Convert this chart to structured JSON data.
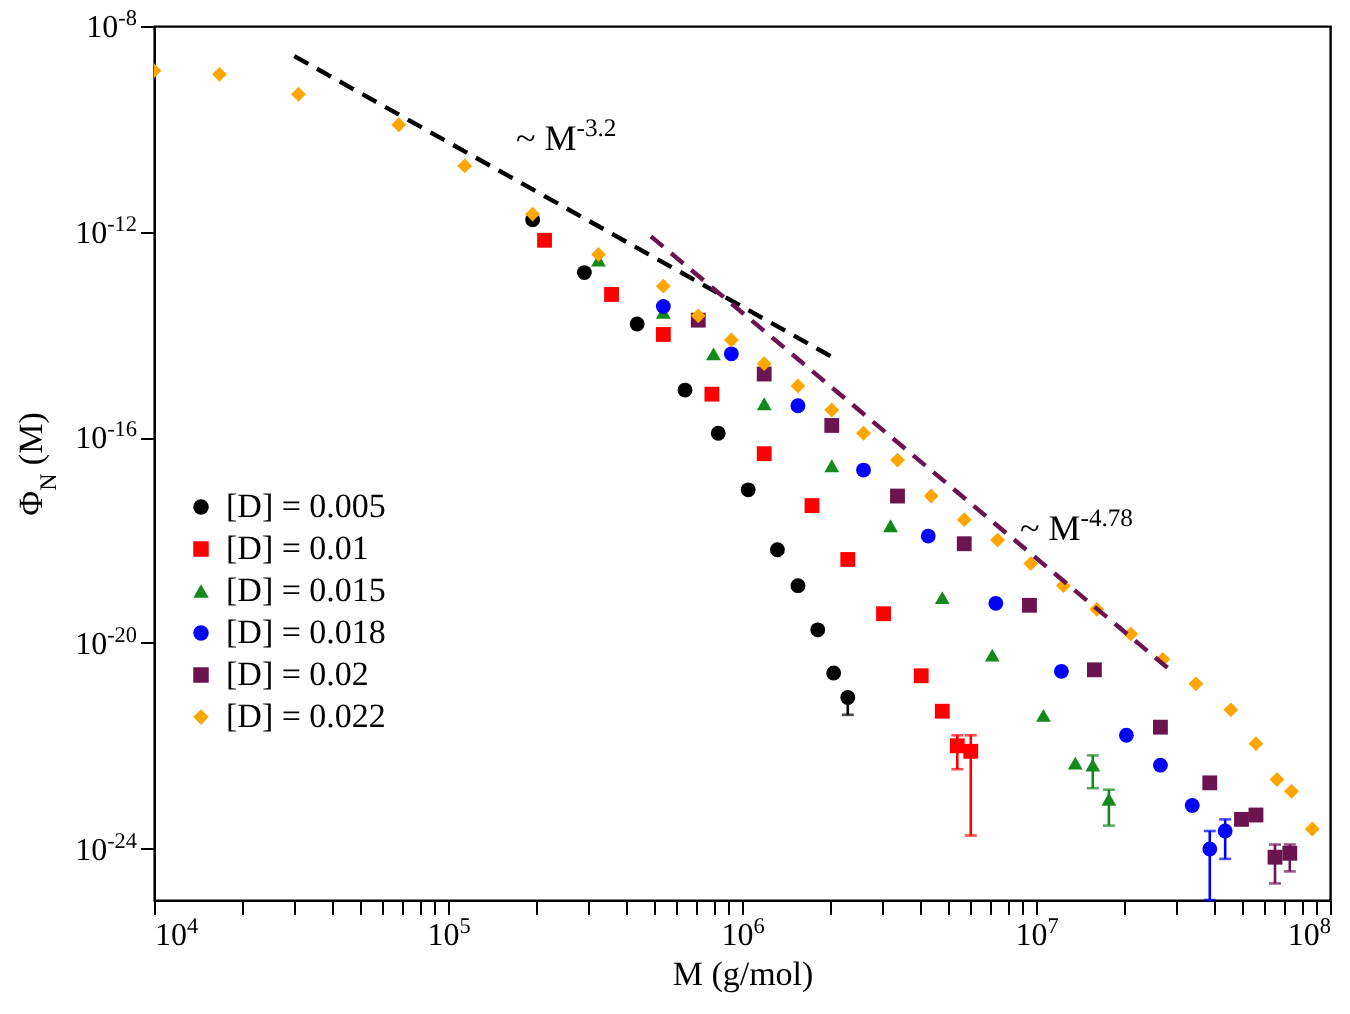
{
  "chart_data": {
    "type": "scatter",
    "xlabel": "M (g/mol)",
    "ylabel": "Φ$_{N}$ (M)",
    "log": "xy",
    "grid": false,
    "legend": "left",
    "xlim": [
      10000,
      100000000
    ],
    "ylim": [
      1e-25,
      1e-08
    ],
    "xticks": [
      {
        "value": 10000,
        "label": "10$^{4}$"
      },
      {
        "value": 20000,
        "label": null
      },
      {
        "value": 30000,
        "label": null
      },
      {
        "value": 40000,
        "label": null
      },
      {
        "value": 50000,
        "label": null
      },
      {
        "value": 60000,
        "label": null
      },
      {
        "value": 70000,
        "label": null
      },
      {
        "value": 80000,
        "label": null
      },
      {
        "value": 90000,
        "label": null
      },
      {
        "value": 100000,
        "label": "10$^{5}$"
      },
      {
        "value": 200000,
        "label": null
      },
      {
        "value": 300000,
        "label": null
      },
      {
        "value": 400000,
        "label": null
      },
      {
        "value": 500000,
        "label": null
      },
      {
        "value": 600000,
        "label": null
      },
      {
        "value": 700000,
        "label": null
      },
      {
        "value": 800000,
        "label": null
      },
      {
        "value": 900000,
        "label": null
      },
      {
        "value": 1000000,
        "label": "10$^{6}$"
      },
      {
        "value": 2000000,
        "label": null
      },
      {
        "value": 3000000,
        "label": null
      },
      {
        "value": 4000000,
        "label": null
      },
      {
        "value": 5000000,
        "label": null
      },
      {
        "value": 6000000,
        "label": null
      },
      {
        "value": 7000000,
        "label": null
      },
      {
        "value": 8000000,
        "label": null
      },
      {
        "value": 9000000,
        "label": null
      },
      {
        "value": 10000000,
        "label": "10$^{7}$"
      },
      {
        "value": 20000000,
        "label": null
      },
      {
        "value": 30000000,
        "label": null
      },
      {
        "value": 40000000,
        "label": null
      },
      {
        "value": 50000000,
        "label": null
      },
      {
        "value": 60000000,
        "label": null
      },
      {
        "value": 70000000,
        "label": null
      },
      {
        "value": 80000000,
        "label": null
      },
      {
        "value": 90000000,
        "label": null
      },
      {
        "value": 100000000,
        "label": "10$^{8}$"
      }
    ],
    "yticks": [
      {
        "value": 1e-24,
        "label": "10$^{-24}$"
      },
      {
        "value": 1e-20,
        "label": "10$^{-20}$"
      },
      {
        "value": 1e-16,
        "label": "10$^{-16}$"
      },
      {
        "value": 1e-12,
        "label": "10$^{-12}$"
      },
      {
        "value": 1e-08,
        "label": "10$^{-8}$"
      }
    ],
    "annotations": [
      "~ M$^{-3.2}$",
      "~ M$^{-4.78}$"
    ],
    "series": [
      {
        "name": "[D] = 0.005",
        "color": "#000000",
        "marker": "circle",
        "x": [
          194000,
          291000,
          440000,
          640000,
          830000,
          1050000,
          1320000,
          1550000,
          1810000,
          2050000,
          2290000
        ],
        "values": [
          1.7e-12,
          1.6e-13,
          1.6e-14,
          8.3e-16,
          1.2e-16,
          9.5e-18,
          6.5e-19,
          1.3e-19,
          1.8e-20,
          2.6e-21,
          8.7e-22
        ],
        "errors": [
          null,
          null,
          null,
          null,
          null,
          null,
          null,
          null,
          null,
          null,
          [
            4e-22,
            8.7e-22
          ]
        ]
      },
      {
        "name": "[D] = 0.01",
        "color": "#ff0000",
        "marker": "square",
        "x": [
          213000,
          360000,
          540000,
          790000,
          1190000,
          1730000,
          2290000,
          3030000,
          4070000,
          4800000,
          5400000,
          6000000
        ],
        "values": [
          6.8e-13,
          6e-14,
          1e-14,
          6.9e-16,
          4.8e-17,
          4.7e-18,
          4.2e-19,
          3.7e-20,
          2.3e-21,
          4.7e-22,
          1e-22,
          7.8e-23
        ],
        "errors": [
          null,
          null,
          null,
          null,
          null,
          null,
          null,
          null,
          null,
          null,
          [
            3.5e-23,
            1.6e-22
          ],
          [
            1.8e-24,
            1.6e-22
          ]
        ]
      },
      {
        "name": "[D] = 0.015",
        "color": "#12891a",
        "marker": "triangle",
        "x": [
          325000,
          540000,
          800000,
          1190000,
          2020000,
          3200000,
          4800000,
          7100000,
          10600000,
          13600000,
          15600000,
          17700000
        ],
        "values": [
          2.8e-13,
          2.7e-14,
          4.2e-15,
          4.5e-16,
          2.8e-17,
          1.9e-18,
          7.6e-20,
          5.8e-21,
          3.9e-22,
          4.6e-23,
          4.2e-23,
          9.1e-24
        ],
        "errors": [
          null,
          null,
          null,
          null,
          null,
          null,
          null,
          null,
          null,
          null,
          [
            1.5e-23,
            6.5e-23
          ],
          [
            2.8e-24,
            1.4e-23
          ]
        ]
      },
      {
        "name": "[D] = 0.018",
        "color": "#0000ff",
        "marker": "circle",
        "x": [
          540000,
          920000,
          1550000,
          2590000,
          4300000,
          7300000,
          12200000,
          20300000,
          26500000,
          34000000,
          39000000,
          44000000
        ],
        "values": [
          3.5e-14,
          4.2e-15,
          4.1e-16,
          2.3e-17,
          1.2e-18,
          5.9e-20,
          2.8e-21,
          1.6e-22,
          4.2e-23,
          6.9e-24,
          9.8e-25,
          2.2e-24
        ],
        "errors": [
          null,
          null,
          null,
          null,
          null,
          null,
          null,
          null,
          null,
          null,
          [
            1e-25,
            2.2e-24
          ],
          [
            6.3e-25,
            3.7e-24
          ]
        ]
      },
      {
        "name": "[D] = 0.02",
        "color": "#6b1450",
        "marker": "square",
        "x": [
          710000,
          1190000,
          2020000,
          3380000,
          5700000,
          9500000,
          15800000,
          26500000,
          39000000,
          50000000,
          56000000,
          65000000,
          73000000
        ],
        "values": [
          1.9e-14,
          1.7e-15,
          1.7e-16,
          7.2e-18,
          8.5e-19,
          5.4e-20,
          3e-21,
          2.3e-22,
          1.9e-23,
          3.7e-24,
          4.5e-24,
          6.8e-25,
          8.1e-25
        ],
        "errors": [
          null,
          null,
          null,
          null,
          null,
          null,
          null,
          null,
          null,
          null,
          null,
          [
            2.1e-25,
            1.2e-24
          ],
          [
            3.6e-25,
            1.2e-24
          ]
        ]
      },
      {
        "name": "[D] = 0.022",
        "color": "#ffa500",
        "marker": "diamond",
        "x": [
          10000,
          16700,
          31000,
          68000,
          114000,
          194000,
          325000,
          540000,
          710000,
          920000,
          1190000,
          1550000,
          2020000,
          2590000,
          3380000,
          4400000,
          5700000,
          7400000,
          9600000,
          12400000,
          16100000,
          21000000,
          27000000,
          35000000,
          46000000,
          56000000,
          66000000,
          74000000,
          87000000
        ],
        "values": [
          1.35e-09,
          1.15e-09,
          4.7e-10,
          1.2e-10,
          1.9e-11,
          2.2e-12,
          3.6e-13,
          8.7e-14,
          2.3e-14,
          7.8e-15,
          2.7e-15,
          1e-15,
          3.4e-16,
          1.2e-16,
          3.6e-17,
          7.2e-18,
          2.5e-18,
          1e-18,
          3.5e-19,
          1.3e-19,
          4.5e-20,
          1.5e-20,
          4.8e-21,
          1.6e-21,
          5e-22,
          1.1e-22,
          2.2e-23,
          1.3e-23,
          2.4e-24
        ]
      },
      {
        "type": "line",
        "color": "#000000",
        "line_style": "dashed",
        "x": [
          30000,
          2000000
        ],
        "values": [
          2.6e-09,
          3.8e-15
        ]
      },
      {
        "type": "line",
        "color": "#6b1450",
        "line_style": "dashed",
        "x": [
          490000,
          28000000
        ],
        "values": [
          8.1e-13,
          3.3e-21
        ]
      }
    ]
  }
}
